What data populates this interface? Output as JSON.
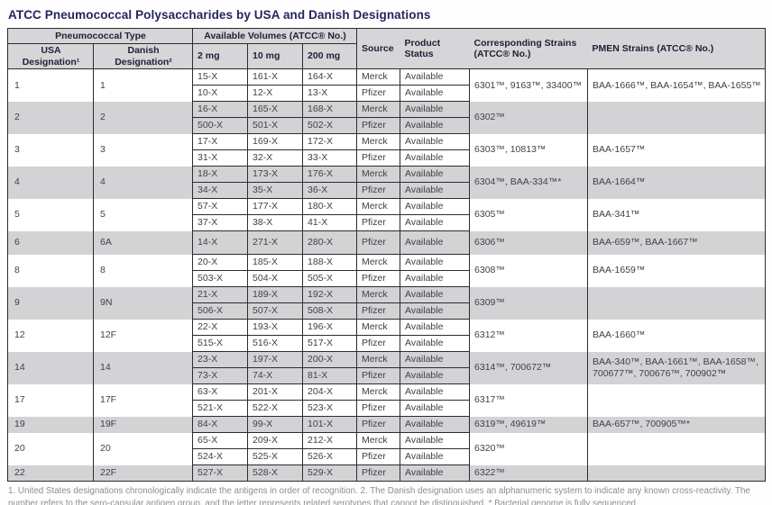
{
  "title": "ATCC Pneumococcal Polysaccharides by USA and Danish Designations",
  "colors": {
    "title_navy": "#23265f",
    "header_bg": "#d6d6d8",
    "row_stripe": "#d3d3d5",
    "border": "#2c2c2e",
    "footnote_gray": "#8e8e90"
  },
  "table": {
    "header": {
      "pneumococcal_type": "Pneumococcal Type",
      "usa_designation": "USA Designation¹",
      "danish_designation": "Danish Designation²",
      "available_volumes": "Available Volumes (ATCC® No.)",
      "vol_2mg": "2 mg",
      "vol_10mg": "10 mg",
      "vol_200mg": "200 mg",
      "source": "Source",
      "product_status": "Product Status",
      "corresponding_strains": "Corresponding Strains (ATCC® No.)",
      "pmen_strains": "PMEN Strains (ATCC® No.)"
    },
    "groups": [
      {
        "usa": "1",
        "danish": "1",
        "rows": [
          {
            "v2": "15-X",
            "v10": "161-X",
            "v200": "164-X",
            "source": "Merck",
            "status": "Available"
          },
          {
            "v2": "10-X",
            "v10": "12-X",
            "v200": "13-X",
            "source": "Pfizer",
            "status": "Available"
          }
        ],
        "corresponding": "6301™, 9163™, 33400™",
        "pmen": "BAA-1666™, BAA-1654™, BAA-1655™"
      },
      {
        "usa": "2",
        "danish": "2",
        "rows": [
          {
            "v2": "16-X",
            "v10": "165-X",
            "v200": "168-X",
            "source": "Merck",
            "status": "Available"
          },
          {
            "v2": "500-X",
            "v10": "501-X",
            "v200": "502-X",
            "source": "Pfizer",
            "status": "Available"
          }
        ],
        "corresponding": "6302™",
        "pmen": ""
      },
      {
        "usa": "3",
        "danish": "3",
        "rows": [
          {
            "v2": "17-X",
            "v10": "169-X",
            "v200": "172-X",
            "source": "Merck",
            "status": "Available"
          },
          {
            "v2": "31-X",
            "v10": "32-X",
            "v200": "33-X",
            "source": "Pfizer",
            "status": "Available"
          }
        ],
        "corresponding": "6303™, 10813™",
        "pmen": "BAA-1657™"
      },
      {
        "usa": "4",
        "danish": "4",
        "rows": [
          {
            "v2": "18-X",
            "v10": "173-X",
            "v200": "176-X",
            "source": "Merck",
            "status": "Available"
          },
          {
            "v2": "34-X",
            "v10": "35-X",
            "v200": "36-X",
            "source": "Pfizer",
            "status": "Available"
          }
        ],
        "corresponding": "6304™, BAA-334™*",
        "pmen": "BAA-1664™"
      },
      {
        "usa": "5",
        "danish": "5",
        "rows": [
          {
            "v2": "57-X",
            "v10": "177-X",
            "v200": "180-X",
            "source": "Merck",
            "status": "Available"
          },
          {
            "v2": "37-X",
            "v10": "38-X",
            "v200": "41-X",
            "source": "Pfizer",
            "status": "Available"
          }
        ],
        "corresponding": "6305™",
        "pmen": "BAA-341™"
      },
      {
        "usa": "6",
        "danish": "6A",
        "tall": true,
        "rows": [
          {
            "v2": "14-X",
            "v10": "271-X",
            "v200": "280-X",
            "source": "Pfizer",
            "status": "Available"
          }
        ],
        "corresponding": "6306™",
        "pmen": "BAA-659™, BAA-1667™"
      },
      {
        "usa": "8",
        "danish": "8",
        "rows": [
          {
            "v2": "20-X",
            "v10": "185-X",
            "v200": "188-X",
            "source": "Merck",
            "status": "Available"
          },
          {
            "v2": "503-X",
            "v10": "504-X",
            "v200": "505-X",
            "source": "Pfizer",
            "status": "Available"
          }
        ],
        "corresponding": "6308™",
        "pmen": "BAA-1659™"
      },
      {
        "usa": "9",
        "danish": "9N",
        "rows": [
          {
            "v2": "21-X",
            "v10": "189-X",
            "v200": "192-X",
            "source": "Merck",
            "status": "Available"
          },
          {
            "v2": "506-X",
            "v10": "507-X",
            "v200": "508-X",
            "source": "Pfizer",
            "status": "Available"
          }
        ],
        "corresponding": "6309™",
        "pmen": ""
      },
      {
        "usa": "12",
        "danish": "12F",
        "rows": [
          {
            "v2": "22-X",
            "v10": "193-X",
            "v200": "196-X",
            "source": "Merck",
            "status": "Available"
          },
          {
            "v2": "515-X",
            "v10": "516-X",
            "v200": "517-X",
            "source": "Pfizer",
            "status": "Available"
          }
        ],
        "corresponding": "6312™",
        "pmen": "BAA-1660™"
      },
      {
        "usa": "14",
        "danish": "14",
        "rows": [
          {
            "v2": "23-X",
            "v10": "197-X",
            "v200": "200-X",
            "source": "Merck",
            "status": "Available"
          },
          {
            "v2": "73-X",
            "v10": "74-X",
            "v200": "81-X",
            "source": "Pfizer",
            "status": "Available"
          }
        ],
        "corresponding": "6314™, 700672™",
        "pmen": "BAA-340™, BAA-1661™, BAA-1658™, 700677™, 700676™, 700902™"
      },
      {
        "usa": "17",
        "danish": "17F",
        "rows": [
          {
            "v2": "63-X",
            "v10": "201-X",
            "v200": "204-X",
            "source": "Merck",
            "status": "Available"
          },
          {
            "v2": "521-X",
            "v10": "522-X",
            "v200": "523-X",
            "source": "Pfizer",
            "status": "Available"
          }
        ],
        "corresponding": "6317™",
        "pmen": ""
      },
      {
        "usa": "19",
        "danish": "19F",
        "rows": [
          {
            "v2": "84-X",
            "v10": "99-X",
            "v200": "101-X",
            "source": "Pfizer",
            "status": "Available"
          }
        ],
        "corresponding": "6319™, 49619™",
        "pmen": "BAA-657™, 700905™*"
      },
      {
        "usa": "20",
        "danish": "20",
        "rows": [
          {
            "v2": "65-X",
            "v10": "209-X",
            "v200": "212-X",
            "source": "Merck",
            "status": "Available"
          },
          {
            "v2": "524-X",
            "v10": "525-X",
            "v200": "526-X",
            "source": "Pfizer",
            "status": "Available"
          }
        ],
        "corresponding": "6320™",
        "pmen": ""
      },
      {
        "usa": "22",
        "danish": "22F",
        "rows": [
          {
            "v2": "527-X",
            "v10": "528-X",
            "v200": "529-X",
            "source": "Pfizer",
            "status": "Available"
          }
        ],
        "corresponding": "6322™",
        "pmen": ""
      }
    ]
  },
  "footnote": "1. United States designations chronologically indicate the antigens in order of recognition. 2. The Danish designation uses an alphanumeric system to indicate any known cross-reactivity. The number refers to the sero-capsular antigen group, and the letter represents related serotypes that cannot be distinguished. * Bacterial genome is fully sequenced"
}
